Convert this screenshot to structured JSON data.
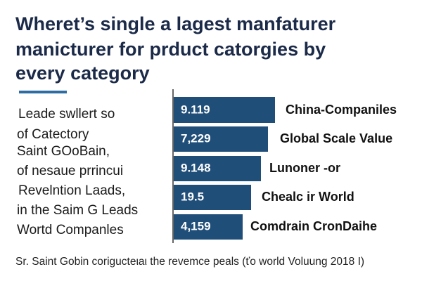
{
  "header": {
    "title": [
      "Wheret’s single a lagest manfaturer",
      "manicturer for prduct catorgies by",
      "every category"
    ]
  },
  "side_text": [
    "Leade swllert so",
    "of Catectory",
    "Saint GOoBain,",
    "of nesaue prrincui",
    "Revelntion Laads,",
    "in the Saim G Leads",
    "Wortd Companles"
  ],
  "rows": [
    {
      "value": "9.119",
      "label": "China-Companiles"
    },
    {
      "value": "7,229",
      "label": "Global Scale Value"
    },
    {
      "value": "9.148",
      "label": "Lunoner -or"
    },
    {
      "value": "19.5",
      "label": "Chealc ir World"
    },
    {
      "value": "4,159",
      "label": "Comdrain CronDaihe"
    }
  ],
  "footnote": "Sr. Saint Gobin coriguctеιaι the revemce peals (ťo world Voluung 2018 I)"
}
